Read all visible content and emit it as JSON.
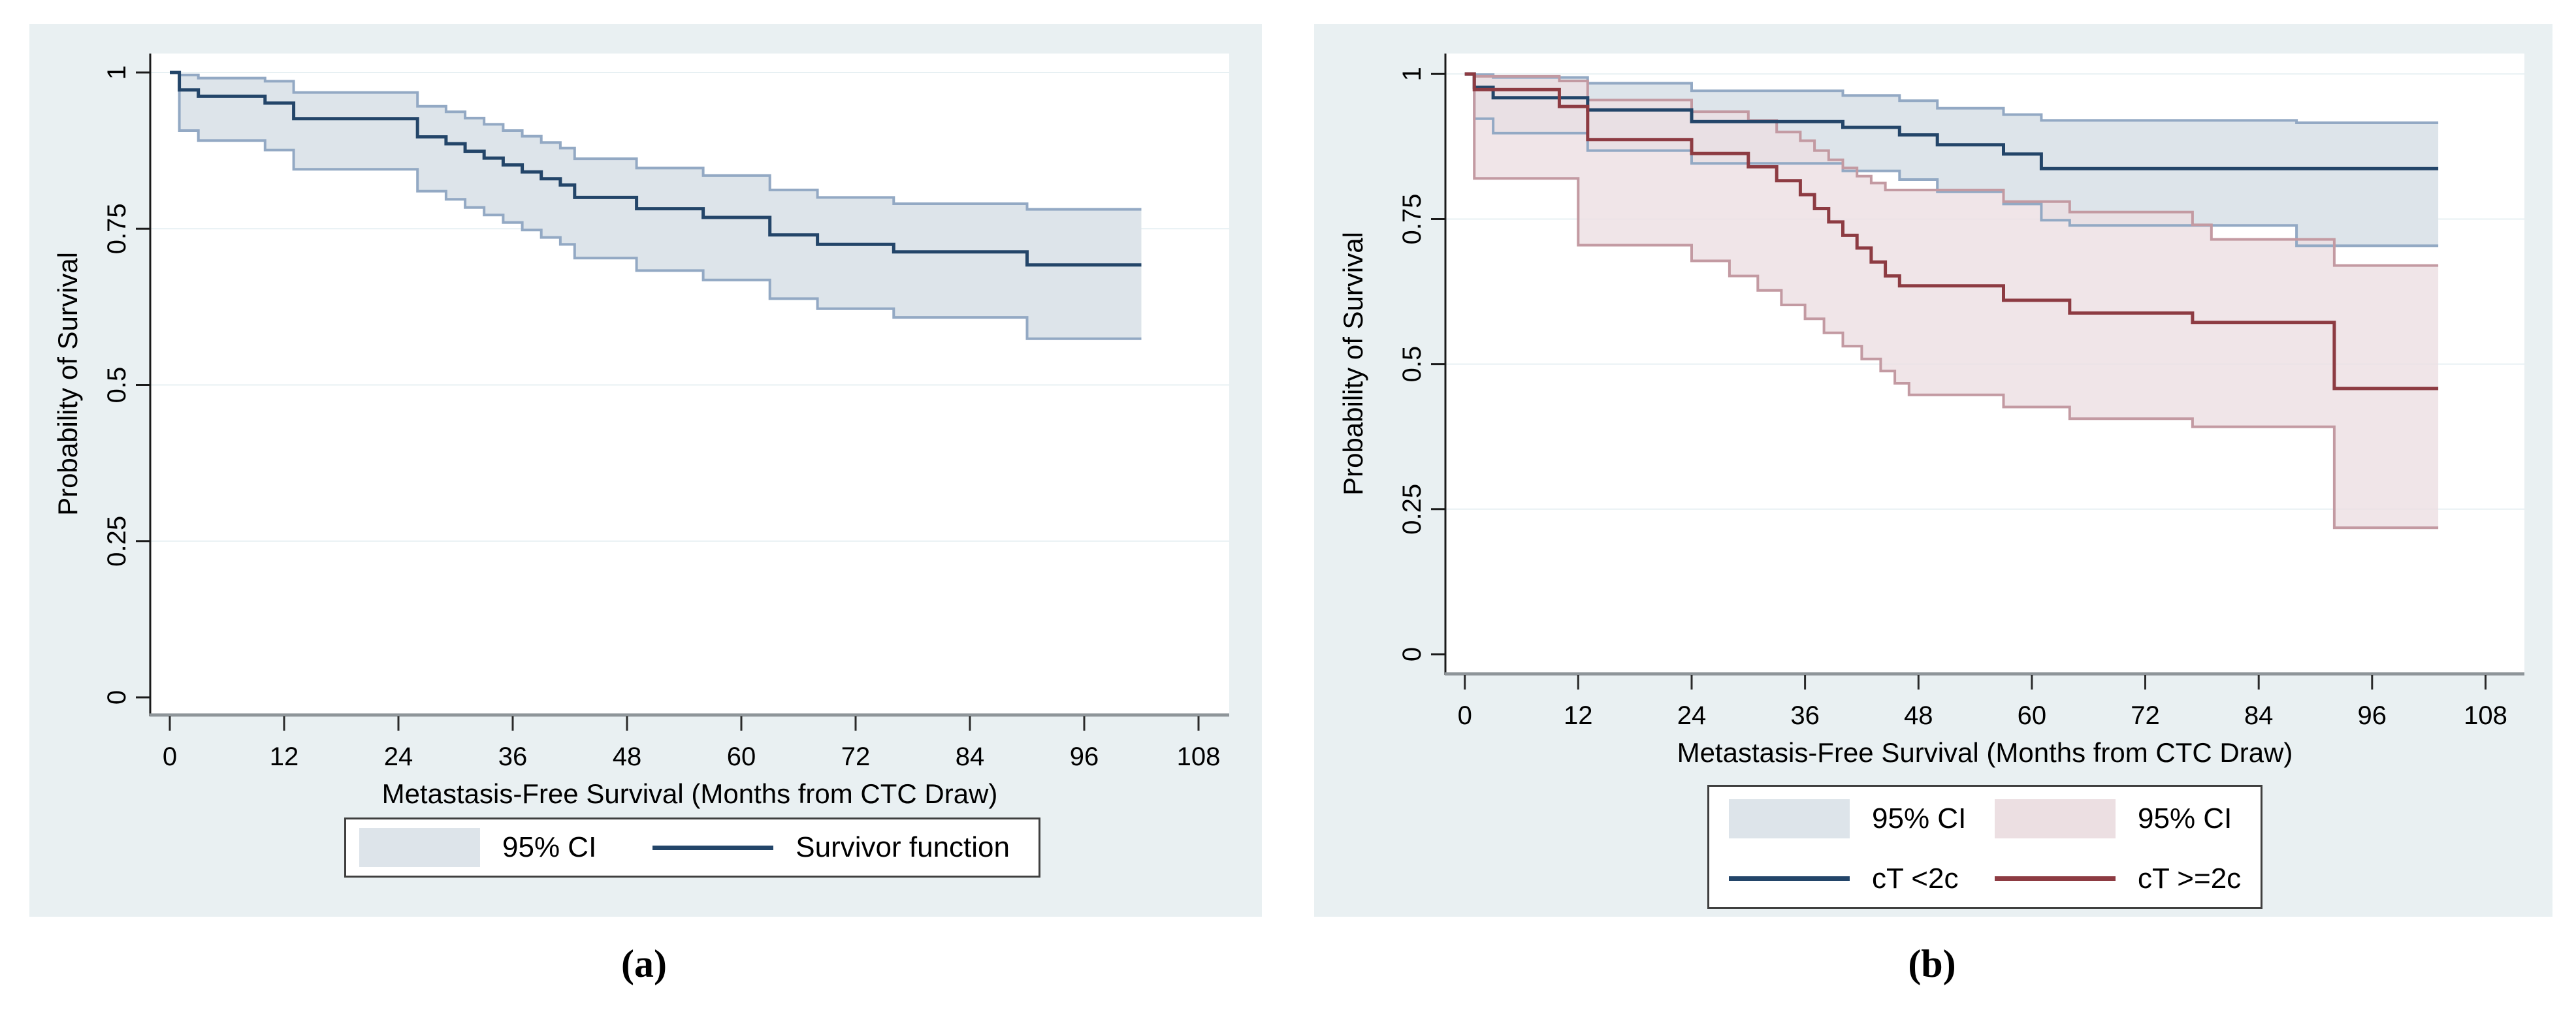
{
  "figure": {
    "description": "Two Kaplan-Meier metastasis-free survival plots",
    "accent_colors": {
      "navy_line": "#234569",
      "dark_red_line": "#8d3b42",
      "blue_ci_fill": "#dde4ea",
      "blue_ci_edge": "#93a9c4",
      "pink_ci_fill": "#ecdfe2",
      "pink_ci_edge": "#c39aa2",
      "graph_background": "#e9f0f2",
      "gridline": "#e7f0f3"
    }
  },
  "chart_data": [
    {
      "type": "line",
      "subtype": "kaplan-meier-step",
      "title": "",
      "caption": "(a)",
      "xlabel": "Metastasis-Free Survival (Months from CTC Draw)",
      "ylabel": "Probability of Survival",
      "xlim": [
        0,
        108
      ],
      "ylim": [
        0,
        1
      ],
      "x_ticks": [
        0,
        12,
        24,
        36,
        48,
        60,
        72,
        84,
        96,
        108
      ],
      "y_ticks": [
        0,
        0.25,
        0.5,
        0.75,
        1
      ],
      "y_tick_labels": [
        "0",
        "0.25",
        "0.5",
        "0.75",
        "1"
      ],
      "grid": "horizontal-only",
      "legend_position": "below-center",
      "series": [
        {
          "name": "95% CI",
          "type": "band",
          "color_fill": "#dde4ea",
          "color_edge": "#93a9c4",
          "upper": [
            [
              0,
              1
            ],
            [
              1,
              0.996
            ],
            [
              3,
              0.991
            ],
            [
              10,
              0.986
            ],
            [
              13,
              0.968
            ],
            [
              26,
              0.946
            ],
            [
              29,
              0.937
            ],
            [
              31,
              0.927
            ],
            [
              33,
              0.917
            ],
            [
              35,
              0.907
            ],
            [
              37,
              0.898
            ],
            [
              39,
              0.888
            ],
            [
              41,
              0.879
            ],
            [
              42.5,
              0.862
            ],
            [
              49,
              0.847
            ],
            [
              56,
              0.835
            ],
            [
              63,
              0.812
            ],
            [
              68,
              0.8
            ],
            [
              76,
              0.79
            ],
            [
              90,
              0.781
            ],
            [
              102,
              0.781
            ]
          ],
          "lower": [
            [
              0,
              1
            ],
            [
              1,
              0.907
            ],
            [
              3,
              0.891
            ],
            [
              10,
              0.876
            ],
            [
              13,
              0.845
            ],
            [
              26,
              0.81
            ],
            [
              29,
              0.797
            ],
            [
              31,
              0.784
            ],
            [
              33,
              0.772
            ],
            [
              35,
              0.76
            ],
            [
              37,
              0.748
            ],
            [
              39,
              0.736
            ],
            [
              41,
              0.725
            ],
            [
              42.5,
              0.703
            ],
            [
              49,
              0.683
            ],
            [
              56,
              0.668
            ],
            [
              63,
              0.638
            ],
            [
              68,
              0.622
            ],
            [
              76,
              0.608
            ],
            [
              90,
              0.574
            ],
            [
              102,
              0.574
            ]
          ]
        },
        {
          "name": "Survivor function",
          "type": "step-line",
          "color": "#234569",
          "points": [
            [
              0,
              1
            ],
            [
              1,
              0.972
            ],
            [
              3,
              0.962
            ],
            [
              10,
              0.951
            ],
            [
              13,
              0.926
            ],
            [
              26,
              0.897
            ],
            [
              29,
              0.886
            ],
            [
              31,
              0.874
            ],
            [
              33,
              0.863
            ],
            [
              35,
              0.852
            ],
            [
              37,
              0.841
            ],
            [
              39,
              0.83
            ],
            [
              41,
              0.82
            ],
            [
              42.5,
              0.8
            ],
            [
              49,
              0.782
            ],
            [
              56,
              0.768
            ],
            [
              63,
              0.74
            ],
            [
              68,
              0.725
            ],
            [
              76,
              0.713
            ],
            [
              90,
              0.692
            ],
            [
              102,
              0.692
            ]
          ]
        }
      ]
    },
    {
      "type": "line",
      "subtype": "kaplan-meier-step",
      "title": "",
      "caption": "(b)",
      "xlabel": "Metastasis-Free Survival (Months from CTC Draw)",
      "ylabel": "Probability of Survival",
      "xlim": [
        0,
        108
      ],
      "ylim": [
        0,
        1
      ],
      "x_ticks": [
        0,
        12,
        24,
        36,
        48,
        60,
        72,
        84,
        96,
        108
      ],
      "y_ticks": [
        0,
        0.25,
        0.5,
        0.75,
        1
      ],
      "y_tick_labels": [
        "0",
        "0.25",
        "0.5",
        "0.75",
        "1"
      ],
      "grid": "horizontal-only",
      "legend_position": "below-center",
      "series": [
        {
          "name": "95% CI",
          "group": "cT <2c",
          "type": "band",
          "color_fill": "#dde4ea",
          "color_edge": "#93a9c4",
          "upper": [
            [
              0,
              1
            ],
            [
              1,
              0.999
            ],
            [
              3,
              0.994
            ],
            [
              13,
              0.984
            ],
            [
              24,
              0.971
            ],
            [
              40,
              0.963
            ],
            [
              46,
              0.954
            ],
            [
              50,
              0.941
            ],
            [
              57,
              0.93
            ],
            [
              61,
              0.92
            ],
            [
              88,
              0.916
            ],
            [
              103,
              0.916
            ]
          ],
          "lower": [
            [
              0,
              1
            ],
            [
              1,
              0.923
            ],
            [
              3,
              0.898
            ],
            [
              13,
              0.868
            ],
            [
              24,
              0.846
            ],
            [
              40,
              0.833
            ],
            [
              46,
              0.818
            ],
            [
              50,
              0.797
            ],
            [
              57,
              0.776
            ],
            [
              61,
              0.748
            ],
            [
              64,
              0.739
            ],
            [
              88,
              0.704
            ],
            [
              103,
              0.704
            ]
          ]
        },
        {
          "name": "95% CI",
          "group": "cT >=2c",
          "type": "band",
          "color_fill": "#ecdfe2",
          "color_edge": "#c39aa2",
          "upper": [
            [
              0,
              1
            ],
            [
              1,
              0.996
            ],
            [
              10,
              0.988
            ],
            [
              13,
              0.955
            ],
            [
              24,
              0.935
            ],
            [
              30,
              0.92
            ],
            [
              33,
              0.9
            ],
            [
              35.5,
              0.885
            ],
            [
              37,
              0.868
            ],
            [
              38.5,
              0.852
            ],
            [
              40,
              0.838
            ],
            [
              41.5,
              0.824
            ],
            [
              43,
              0.812
            ],
            [
              44.5,
              0.8
            ],
            [
              57,
              0.78
            ],
            [
              64,
              0.762
            ],
            [
              77,
              0.74
            ],
            [
              79,
              0.715
            ],
            [
              92,
              0.67
            ],
            [
              103,
              0.67
            ]
          ],
          "lower": [
            [
              0,
              1
            ],
            [
              1,
              0.82
            ],
            [
              12,
              0.705
            ],
            [
              24,
              0.678
            ],
            [
              28,
              0.652
            ],
            [
              31,
              0.627
            ],
            [
              33.5,
              0.602
            ],
            [
              36,
              0.578
            ],
            [
              38,
              0.554
            ],
            [
              40,
              0.531
            ],
            [
              42,
              0.509
            ],
            [
              44,
              0.488
            ],
            [
              45.5,
              0.467
            ],
            [
              47,
              0.447
            ],
            [
              57,
              0.426
            ],
            [
              64,
              0.406
            ],
            [
              77,
              0.392
            ],
            [
              92,
              0.218
            ],
            [
              103,
              0.218
            ]
          ]
        },
        {
          "name": "cT <2c",
          "type": "step-line",
          "color": "#234569",
          "points": [
            [
              0,
              1
            ],
            [
              1,
              0.977
            ],
            [
              3,
              0.959
            ],
            [
              13,
              0.938
            ],
            [
              24,
              0.918
            ],
            [
              40,
              0.908
            ],
            [
              46,
              0.895
            ],
            [
              50,
              0.878
            ],
            [
              57,
              0.862
            ],
            [
              61,
              0.837
            ],
            [
              103,
              0.837
            ]
          ]
        },
        {
          "name": "cT >=2c",
          "type": "step-line",
          "color": "#8d3b42",
          "points": [
            [
              0,
              1
            ],
            [
              1,
              0.973
            ],
            [
              10,
              0.944
            ],
            [
              13,
              0.887
            ],
            [
              24,
              0.863
            ],
            [
              30,
              0.84
            ],
            [
              33,
              0.816
            ],
            [
              35.5,
              0.792
            ],
            [
              37,
              0.768
            ],
            [
              38.5,
              0.745
            ],
            [
              40,
              0.722
            ],
            [
              41.5,
              0.7
            ],
            [
              43,
              0.676
            ],
            [
              44.5,
              0.652
            ],
            [
              46,
              0.635
            ],
            [
              57,
              0.61
            ],
            [
              64,
              0.588
            ],
            [
              77,
              0.572
            ],
            [
              92,
              0.458
            ],
            [
              103,
              0.458
            ]
          ]
        }
      ]
    }
  ]
}
